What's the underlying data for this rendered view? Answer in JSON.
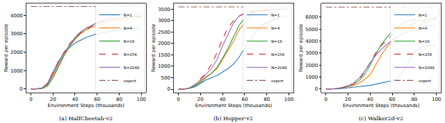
{
  "chart_data": [
    {
      "type": "line",
      "title": "(a) HalfCheetah-v2",
      "x_label": "Environment Steps (thousands)",
      "y_label": "Reward per episode",
      "x": [
        0,
        5,
        10,
        15,
        20,
        25,
        30,
        35,
        40,
        45,
        50,
        55,
        60,
        65,
        70,
        75,
        80,
        85,
        90,
        95,
        100
      ],
      "xlim": [
        -4,
        104
      ],
      "xticks": [
        0,
        20,
        40,
        60,
        80,
        100
      ],
      "ylim": [
        -200,
        4650
      ],
      "yticks": [
        0,
        1000,
        2000,
        3000,
        4000
      ],
      "grid": false,
      "legend": "lower right",
      "series": [
        {
          "name": "N=1",
          "color": "#1f77b4",
          "line_style": "solid",
          "values": [
            0,
            0,
            50,
            300,
            900,
            1500,
            1950,
            2250,
            2500,
            2650,
            2800,
            2900,
            3000,
            3050,
            3100,
            3150,
            3200,
            3250,
            3300,
            3300,
            3250
          ]
        },
        {
          "name": "N=4",
          "color": "#ff7f0e",
          "line_style": "solid",
          "values": [
            0,
            0,
            30,
            200,
            700,
            1300,
            1850,
            2300,
            2700,
            3000,
            3200,
            3350,
            3450,
            3550,
            3650,
            3700,
            3750,
            3800,
            3850,
            3900,
            3900
          ]
        },
        {
          "name": "N=16",
          "color": "#2ca02c",
          "line_style": "solid",
          "values": [
            0,
            0,
            20,
            150,
            600,
            1200,
            1800,
            2300,
            2750,
            3050,
            3300,
            3450,
            3600,
            3700,
            3750,
            3800,
            3850,
            3900,
            3950,
            3950,
            3900
          ]
        },
        {
          "name": "N=256",
          "color": "#d62728",
          "line_style": "dash",
          "values": [
            0,
            0,
            50,
            300,
            900,
            1500,
            2000,
            2450,
            2800,
            3050,
            3250,
            3400,
            3550,
            3650,
            3700,
            3800,
            3850,
            3900,
            3900,
            3950,
            3950
          ]
        },
        {
          "name": "N=2048",
          "color": "#9467bd",
          "line_style": "solid",
          "values": [
            0,
            0,
            50,
            250,
            800,
            1400,
            1950,
            2400,
            2800,
            3100,
            3300,
            3450,
            3600,
            3750,
            3900,
            4000,
            4050,
            4100,
            4050,
            4100,
            4000
          ]
        },
        {
          "name": "expert",
          "color": "#8c564b",
          "line_style": "dashdot",
          "values": [
            4480,
            4480,
            4480,
            4480,
            4480,
            4480,
            4480,
            4480,
            4480,
            4480,
            4480,
            4480,
            4480,
            4480,
            4480,
            4480,
            4480,
            4480,
            4480,
            4480,
            4480
          ]
        }
      ]
    },
    {
      "type": "line",
      "title": "(b) Hopper-v2",
      "x_label": "Environment Steps (thousands)",
      "y_label": "Reward per episode",
      "x": [
        0,
        5,
        10,
        15,
        20,
        25,
        30,
        35,
        40,
        45,
        50,
        55,
        60,
        65,
        70,
        75,
        80,
        85,
        90,
        95,
        100
      ],
      "xlim": [
        -4,
        104
      ],
      "xticks": [
        0,
        20,
        40,
        60,
        80,
        100
      ],
      "ylim": [
        -150,
        3750
      ],
      "yticks": [
        0,
        500,
        1000,
        1500,
        2000,
        2500,
        3000,
        3500
      ],
      "grid": false,
      "legend": "lower right",
      "series": [
        {
          "name": "N=1",
          "color": "#1f77b4",
          "line_style": "solid",
          "values": [
            0,
            0,
            30,
            100,
            250,
            400,
            500,
            600,
            750,
            900,
            1100,
            1400,
            1800,
            2200,
            2500,
            2800,
            2900,
            3000,
            3100,
            3200,
            3200
          ]
        },
        {
          "name": "N=4",
          "color": "#ff7f0e",
          "line_style": "solid",
          "values": [
            0,
            0,
            50,
            150,
            350,
            550,
            700,
            900,
            1300,
            1700,
            2100,
            2600,
            2900,
            3200,
            3300,
            3400,
            3450,
            3450,
            3500,
            3500,
            3500
          ]
        },
        {
          "name": "N=16",
          "color": "#2ca02c",
          "line_style": "solid",
          "values": [
            0,
            0,
            50,
            150,
            300,
            500,
            700,
            950,
            1350,
            1800,
            2300,
            2800,
            3100,
            3300,
            3400,
            3450,
            3450,
            3500,
            3500,
            3500,
            3500
          ]
        },
        {
          "name": "N=256",
          "color": "#d62728",
          "line_style": "dash",
          "values": [
            0,
            0,
            50,
            200,
            450,
            700,
            1100,
            1600,
            2200,
            2700,
            3000,
            3200,
            3300,
            3350,
            3400,
            3450,
            3450,
            3500,
            3500,
            3500,
            3500
          ]
        },
        {
          "name": "N=2048",
          "color": "#9467bd",
          "line_style": "solid",
          "values": [
            0,
            0,
            50,
            200,
            400,
            650,
            900,
            1300,
            1900,
            2400,
            2900,
            3200,
            3350,
            3400,
            3450,
            3450,
            3500,
            3500,
            3500,
            3500,
            3500
          ]
        },
        {
          "name": "expert",
          "color": "#8c564b",
          "line_style": "dashdot",
          "values": [
            3600,
            3600,
            3600,
            3600,
            3600,
            3600,
            3600,
            3600,
            3600,
            3600,
            3600,
            3600,
            3600,
            3600,
            3600,
            3600,
            3600,
            3600,
            3600,
            3600,
            3600
          ]
        }
      ]
    },
    {
      "type": "line",
      "title": "(c) Walker2d-v2",
      "x_label": "Environment Steps (thousands)",
      "y_label": "Reward per episode",
      "x": [
        0,
        5,
        10,
        15,
        20,
        25,
        30,
        35,
        40,
        45,
        50,
        55,
        60,
        65,
        70,
        75,
        80,
        85,
        90,
        95,
        100
      ],
      "xlim": [
        -4,
        104
      ],
      "xticks": [
        0,
        20,
        40,
        60,
        80,
        100
      ],
      "ylim": [
        -300,
        7150
      ],
      "yticks": [
        0,
        1000,
        2000,
        3000,
        4000,
        5000,
        6000
      ],
      "grid": false,
      "legend": "lower right",
      "series": [
        {
          "name": "N=1",
          "color": "#1f77b4",
          "line_style": "solid",
          "values": [
            0,
            0,
            0,
            50,
            100,
            150,
            200,
            250,
            300,
            400,
            500,
            600,
            700,
            900,
            1500,
            2300,
            3000,
            3400,
            3600,
            3700,
            3600
          ]
        },
        {
          "name": "N=4",
          "color": "#ff7f0e",
          "line_style": "solid",
          "values": [
            0,
            0,
            50,
            100,
            200,
            300,
            500,
            800,
            1200,
            2000,
            2800,
            3500,
            4000,
            4400,
            4700,
            5000,
            5200,
            5400,
            5600,
            5800,
            5800
          ]
        },
        {
          "name": "N=16",
          "color": "#2ca02c",
          "line_style": "solid",
          "values": [
            0,
            0,
            50,
            100,
            200,
            400,
            700,
            1200,
            2000,
            2900,
            3700,
            4300,
            4800,
            5200,
            5500,
            5700,
            5800,
            5700,
            5600,
            5800,
            5900
          ]
        },
        {
          "name": "N=256",
          "color": "#d62728",
          "line_style": "dash",
          "values": [
            0,
            0,
            50,
            100,
            200,
            400,
            800,
            1400,
            2200,
            3000,
            3600,
            4100,
            4500,
            4800,
            5000,
            5200,
            5500,
            5700,
            5800,
            5900,
            6000
          ]
        },
        {
          "name": "N=2048",
          "color": "#9467bd",
          "line_style": "solid",
          "values": [
            0,
            0,
            50,
            150,
            300,
            500,
            900,
            1500,
            2200,
            2800,
            3300,
            3700,
            4100,
            4400,
            4600,
            4800,
            5000,
            5100,
            5300,
            5300,
            5300
          ]
        },
        {
          "name": "expert",
          "color": "#8c564b",
          "line_style": "dashdot",
          "values": [
            6850,
            6850,
            6850,
            6850,
            6850,
            6850,
            6850,
            6850,
            6850,
            6850,
            6850,
            6850,
            6850,
            6850,
            6850,
            6850,
            6850,
            6850,
            6850,
            6850,
            6850
          ]
        }
      ]
    }
  ]
}
